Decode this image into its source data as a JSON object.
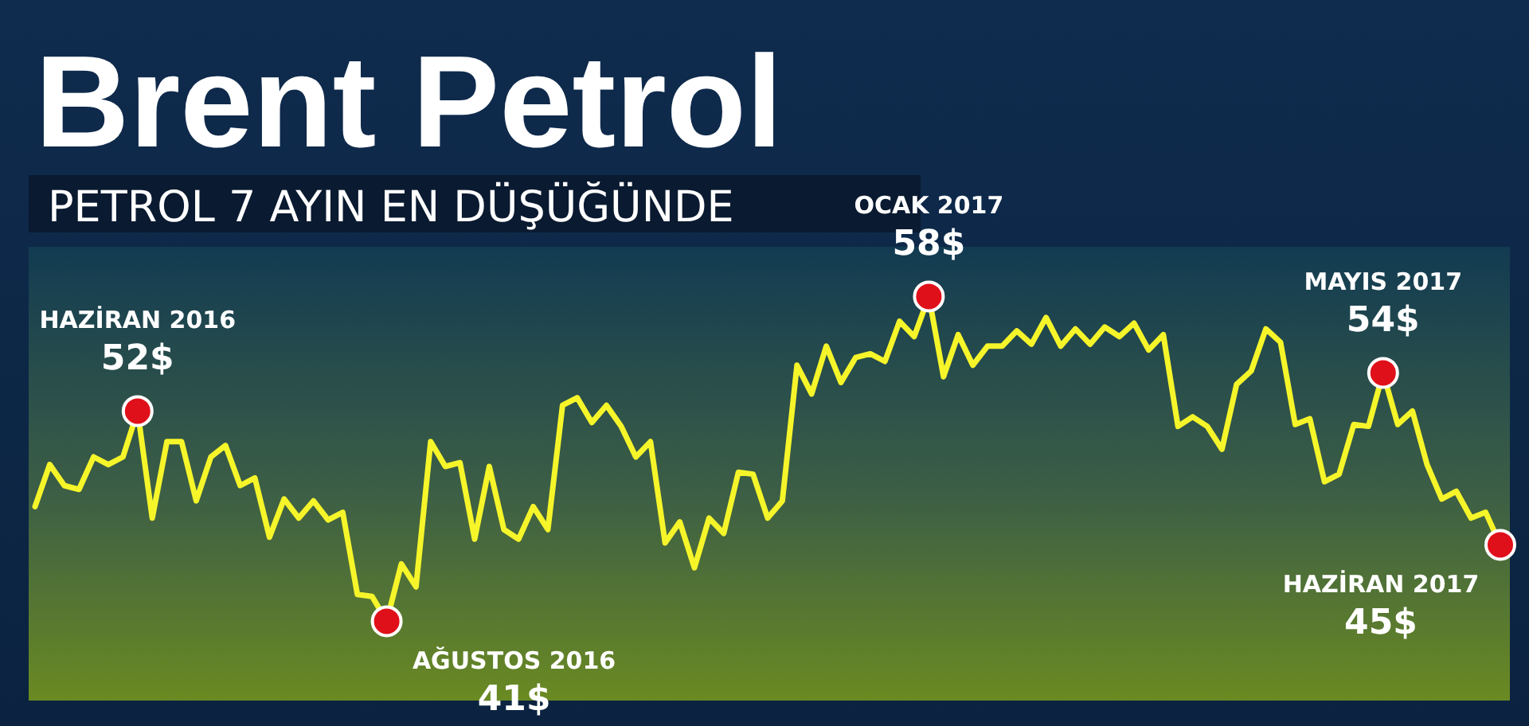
{
  "chart_data": {
    "type": "line",
    "title": "Brent Petrol",
    "subtitle": "PETROL 7 AYIN EN DÜŞÜĞÜNDE",
    "categories": [
      null,
      null,
      null,
      null,
      null,
      null,
      null,
      null,
      null,
      null,
      null,
      null,
      null,
      null,
      null,
      null,
      null,
      null,
      null,
      null,
      null,
      null,
      null,
      null,
      null,
      null,
      null,
      null,
      null,
      null,
      null,
      null,
      null,
      null,
      null,
      null,
      null,
      null,
      null,
      null,
      null,
      null,
      null,
      null,
      null,
      null,
      null,
      null,
      null,
      null,
      null,
      null,
      null,
      null,
      null,
      null,
      null,
      null,
      null,
      null,
      null,
      null,
      null,
      null,
      null,
      null,
      null,
      null,
      null,
      null,
      null,
      null,
      null,
      null,
      null,
      null,
      null,
      null,
      null,
      null,
      null,
      null,
      null,
      null,
      null,
      null,
      null,
      null,
      null,
      null,
      null,
      null,
      null,
      null,
      null,
      null,
      null,
      null,
      null,
      null,
      null
    ],
    "series": [
      {
        "color": "#f5f52a",
        "values": [
          47.0,
          49.2,
          48.1,
          47.9,
          49.6,
          49.2,
          49.6,
          52,
          46.4,
          50.4,
          50.4,
          47.3,
          49.6,
          50.2,
          48.1,
          48.5,
          45.4,
          47.4,
          46.4,
          47.3,
          46.3,
          46.7,
          42.4,
          42.3,
          41,
          44.0,
          42.8,
          50.4,
          49.1,
          49.3,
          45.3,
          49.1,
          45.8,
          45.3,
          47.0,
          45.8,
          52.3,
          52.7,
          51.4,
          52.3,
          51.2,
          49.6,
          50.4,
          45.1,
          46.2,
          43.8,
          46.4,
          45.6,
          48.8,
          48.7,
          46.4,
          47.3,
          54.4,
          52.9,
          55.4,
          53.5,
          54.8,
          55.0,
          54.6,
          56.7,
          55.9,
          58,
          53.8,
          56.0,
          54.4,
          55.4,
          55.4,
          56.2,
          55.5,
          56.9,
          55.4,
          56.3,
          55.5,
          56.4,
          55.9,
          56.6,
          55.2,
          56.0,
          51.2,
          51.7,
          51.2,
          50.0,
          53.4,
          54.1,
          56.3,
          55.6,
          51.3,
          51.6,
          48.3,
          48.7,
          51.3,
          51.2,
          54,
          51.3,
          52.0,
          49.2,
          47.4,
          47.8,
          46.4,
          46.7,
          45
        ],
        "value_labels": [
          null,
          null,
          null,
          null,
          null,
          null,
          null,
          "HAZİRAN 2016\n52$",
          null,
          null,
          null,
          null,
          null,
          null,
          null,
          null,
          null,
          null,
          null,
          null,
          null,
          null,
          null,
          null,
          "AĞUSTOS 2016\n41$",
          null,
          null,
          null,
          null,
          null,
          null,
          null,
          null,
          null,
          null,
          null,
          null,
          null,
          null,
          null,
          null,
          null,
          null,
          null,
          null,
          null,
          null,
          null,
          null,
          null,
          null,
          null,
          null,
          null,
          null,
          null,
          null,
          null,
          null,
          null,
          null,
          "OCAK 2017\n58$",
          null,
          null,
          null,
          null,
          null,
          null,
          null,
          null,
          null,
          null,
          null,
          null,
          null,
          null,
          null,
          null,
          null,
          null,
          null,
          null,
          null,
          null,
          null,
          null,
          null,
          null,
          null,
          null,
          null,
          null,
          "MAYIS 2017\n54$",
          null,
          null,
          null,
          null,
          null,
          null,
          null,
          "HAZİRAN 2017\n45$"
        ]
      }
    ],
    "ylim": [
      36.85,
      60.6
    ]
  }
}
